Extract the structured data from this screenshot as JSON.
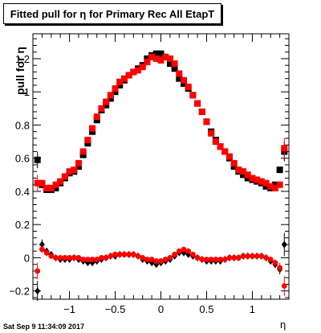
{
  "window": {
    "title": "Fitted pull for η for Primary Rec All EtapT",
    "timestamp": "Sat Sep  9 11:34:09 2017"
  },
  "chart_data": {
    "type": "scatter",
    "title": "Fitted pull for η for Primary Rec All EtapT",
    "xlabel": "η",
    "ylabel": "pull for  η",
    "xlim": [
      -1.4,
      1.4
    ],
    "ylim": [
      -0.25,
      1.35
    ],
    "x_ticks": [
      -1,
      -0.5,
      0,
      0.5,
      1
    ],
    "y_ticks": [
      -0.2,
      0,
      0.2,
      0.4,
      0.6,
      0.8,
      1,
      1.2
    ],
    "x_tick_labels": [
      "−1",
      "−0.5",
      "0",
      "0.5",
      "1"
    ],
    "y_tick_labels": [
      "−0.2",
      "0",
      "0.2",
      "0.4",
      "0.6",
      "0.8",
      "1",
      "1.2"
    ],
    "grid": false,
    "legend": "none",
    "colors": {
      "black": "#000000",
      "red": "#ff0000"
    },
    "series": [
      {
        "marker": "square",
        "color": "#000000",
        "x": [
          -1.35,
          -1.3,
          -1.25,
          -1.2,
          -1.15,
          -1.1,
          -1.05,
          -1.0,
          -0.95,
          -0.9,
          -0.85,
          -0.8,
          -0.75,
          -0.7,
          -0.65,
          -0.6,
          -0.55,
          -0.5,
          -0.45,
          -0.4,
          -0.35,
          -0.3,
          -0.25,
          -0.2,
          -0.15,
          -0.1,
          -0.05,
          0.0,
          0.05,
          0.1,
          0.15,
          0.2,
          0.25,
          0.3,
          0.35,
          0.4,
          0.45,
          0.5,
          0.55,
          0.6,
          0.65,
          0.7,
          0.75,
          0.8,
          0.85,
          0.9,
          0.95,
          1.0,
          1.05,
          1.1,
          1.15,
          1.2,
          1.25,
          1.3,
          1.35
        ],
        "y": [
          0.59,
          0.44,
          0.41,
          0.41,
          0.42,
          0.45,
          0.48,
          0.51,
          0.52,
          0.55,
          0.62,
          0.69,
          0.76,
          0.83,
          0.89,
          0.92,
          0.96,
          1.0,
          1.04,
          1.07,
          1.1,
          1.12,
          1.14,
          1.16,
          1.2,
          1.22,
          1.23,
          1.23,
          1.21,
          1.17,
          1.14,
          1.08,
          1.05,
          1.02,
          0.98,
          0.93,
          0.88,
          0.82,
          0.76,
          0.71,
          0.67,
          0.64,
          0.6,
          0.55,
          0.52,
          0.5,
          0.48,
          0.47,
          0.46,
          0.45,
          0.43,
          0.42,
          0.44,
          0.53,
          0.64
        ],
        "yerr": [
          0.05,
          0.02,
          0.02,
          0.01,
          0.01,
          0.01,
          0.01,
          0.01,
          0.01,
          0.01,
          0.01,
          0.01,
          0.01,
          0.01,
          0.01,
          0.01,
          0.01,
          0.01,
          0.01,
          0.01,
          0.01,
          0.01,
          0.01,
          0.01,
          0.01,
          0.01,
          0.01,
          0.01,
          0.01,
          0.01,
          0.01,
          0.01,
          0.01,
          0.01,
          0.01,
          0.01,
          0.01,
          0.01,
          0.01,
          0.01,
          0.01,
          0.01,
          0.01,
          0.01,
          0.01,
          0.01,
          0.01,
          0.01,
          0.01,
          0.01,
          0.01,
          0.01,
          0.01,
          0.02,
          0.06
        ]
      },
      {
        "marker": "square",
        "color": "#ff0000",
        "x": [
          -1.35,
          -1.3,
          -1.25,
          -1.2,
          -1.15,
          -1.1,
          -1.05,
          -1.0,
          -0.95,
          -0.9,
          -0.85,
          -0.8,
          -0.75,
          -0.7,
          -0.65,
          -0.6,
          -0.55,
          -0.5,
          -0.45,
          -0.4,
          -0.35,
          -0.3,
          -0.25,
          -0.2,
          -0.15,
          -0.1,
          -0.05,
          0.0,
          0.05,
          0.1,
          0.15,
          0.2,
          0.25,
          0.3,
          0.35,
          0.4,
          0.45,
          0.5,
          0.55,
          0.6,
          0.65,
          0.7,
          0.75,
          0.8,
          0.85,
          0.9,
          0.95,
          1.0,
          1.05,
          1.1,
          1.15,
          1.2,
          1.25,
          1.3,
          1.35
        ],
        "y": [
          0.45,
          0.45,
          0.42,
          0.42,
          0.44,
          0.46,
          0.49,
          0.52,
          0.53,
          0.57,
          0.64,
          0.71,
          0.78,
          0.85,
          0.9,
          0.94,
          0.98,
          1.02,
          1.06,
          1.08,
          1.1,
          1.12,
          1.13,
          1.15,
          1.18,
          1.21,
          1.2,
          1.19,
          1.21,
          1.2,
          1.17,
          1.11,
          1.07,
          1.03,
          0.98,
          0.93,
          0.88,
          0.82,
          0.75,
          0.7,
          0.67,
          0.64,
          0.61,
          0.57,
          0.53,
          0.52,
          0.5,
          0.48,
          0.47,
          0.46,
          0.45,
          0.43,
          0.42,
          0.44,
          0.66
        ],
        "yerr": [
          0.05,
          0.02,
          0.02,
          0.01,
          0.01,
          0.01,
          0.01,
          0.01,
          0.01,
          0.01,
          0.01,
          0.01,
          0.01,
          0.01,
          0.01,
          0.01,
          0.01,
          0.01,
          0.01,
          0.01,
          0.01,
          0.01,
          0.01,
          0.01,
          0.01,
          0.01,
          0.01,
          0.01,
          0.01,
          0.01,
          0.01,
          0.01,
          0.01,
          0.01,
          0.01,
          0.01,
          0.01,
          0.01,
          0.01,
          0.01,
          0.01,
          0.01,
          0.01,
          0.01,
          0.01,
          0.01,
          0.01,
          0.01,
          0.01,
          0.01,
          0.01,
          0.01,
          0.01,
          0.02,
          0.06
        ]
      },
      {
        "marker": "diamond",
        "color": "#000000",
        "x": [
          -1.35,
          -1.3,
          -1.25,
          -1.2,
          -1.15,
          -1.1,
          -1.05,
          -1.0,
          -0.95,
          -0.9,
          -0.85,
          -0.8,
          -0.75,
          -0.7,
          -0.65,
          -0.6,
          -0.55,
          -0.5,
          -0.45,
          -0.4,
          -0.35,
          -0.3,
          -0.25,
          -0.2,
          -0.15,
          -0.1,
          -0.05,
          0.0,
          0.05,
          0.1,
          0.15,
          0.2,
          0.25,
          0.3,
          0.35,
          0.4,
          0.45,
          0.5,
          0.55,
          0.6,
          0.65,
          0.7,
          0.75,
          0.8,
          0.85,
          0.9,
          0.95,
          1.0,
          1.05,
          1.1,
          1.15,
          1.2,
          1.25,
          1.3,
          1.35
        ],
        "y": [
          -0.2,
          0.08,
          0.04,
          0.02,
          0.0,
          -0.01,
          -0.01,
          -0.01,
          0.0,
          -0.01,
          -0.02,
          -0.03,
          -0.03,
          -0.02,
          -0.01,
          0.0,
          0.01,
          0.01,
          0.02,
          0.02,
          0.02,
          0.02,
          0.01,
          -0.01,
          -0.02,
          -0.03,
          -0.04,
          -0.03,
          -0.02,
          -0.01,
          0.01,
          0.03,
          0.03,
          0.02,
          0.01,
          0.0,
          -0.01,
          -0.02,
          -0.02,
          -0.02,
          -0.02,
          -0.01,
          0.0,
          0.0,
          0.0,
          0.01,
          0.01,
          0.01,
          0.01,
          0.01,
          0.0,
          -0.02,
          -0.04,
          -0.07,
          0.08
        ],
        "yerr": [
          0.06,
          0.03,
          0.02,
          0.01,
          0.01,
          0.01,
          0.01,
          0.01,
          0.01,
          0.01,
          0.01,
          0.01,
          0.01,
          0.01,
          0.01,
          0.01,
          0.01,
          0.01,
          0.01,
          0.01,
          0.01,
          0.01,
          0.01,
          0.01,
          0.01,
          0.01,
          0.01,
          0.01,
          0.01,
          0.01,
          0.01,
          0.01,
          0.01,
          0.01,
          0.01,
          0.01,
          0.01,
          0.01,
          0.01,
          0.01,
          0.01,
          0.01,
          0.01,
          0.01,
          0.01,
          0.01,
          0.01,
          0.01,
          0.01,
          0.01,
          0.01,
          0.01,
          0.02,
          0.03,
          0.07
        ]
      },
      {
        "marker": "circle",
        "color": "#ff0000",
        "x": [
          -1.35,
          -1.3,
          -1.25,
          -1.2,
          -1.15,
          -1.1,
          -1.05,
          -1.0,
          -0.95,
          -0.9,
          -0.85,
          -0.8,
          -0.75,
          -0.7,
          -0.65,
          -0.6,
          -0.55,
          -0.5,
          -0.45,
          -0.4,
          -0.35,
          -0.3,
          -0.25,
          -0.2,
          -0.15,
          -0.1,
          -0.05,
          0.0,
          0.05,
          0.1,
          0.15,
          0.2,
          0.25,
          0.3,
          0.35,
          0.4,
          0.45,
          0.5,
          0.55,
          0.6,
          0.65,
          0.7,
          0.75,
          0.8,
          0.85,
          0.9,
          0.95,
          1.0,
          1.05,
          1.1,
          1.15,
          1.2,
          1.25,
          1.3,
          1.35
        ],
        "y": [
          -0.08,
          0.05,
          0.03,
          0.01,
          0.0,
          0.0,
          0.0,
          0.0,
          0.0,
          0.0,
          -0.01,
          -0.01,
          -0.01,
          -0.01,
          0.0,
          0.0,
          0.01,
          0.02,
          0.02,
          0.02,
          0.02,
          0.02,
          0.01,
          0.0,
          -0.01,
          -0.01,
          -0.02,
          -0.02,
          -0.01,
          0.0,
          0.02,
          0.04,
          0.05,
          0.04,
          0.02,
          0.0,
          -0.01,
          -0.01,
          -0.01,
          -0.01,
          -0.01,
          -0.01,
          0.0,
          0.0,
          0.0,
          0.01,
          0.01,
          0.01,
          0.01,
          0.01,
          0.0,
          -0.01,
          -0.03,
          -0.06,
          -0.17
        ],
        "yerr": [
          0.05,
          0.02,
          0.02,
          0.01,
          0.01,
          0.01,
          0.01,
          0.01,
          0.01,
          0.01,
          0.01,
          0.01,
          0.01,
          0.01,
          0.01,
          0.01,
          0.01,
          0.01,
          0.01,
          0.01,
          0.01,
          0.01,
          0.01,
          0.01,
          0.01,
          0.01,
          0.01,
          0.01,
          0.01,
          0.01,
          0.01,
          0.01,
          0.01,
          0.01,
          0.01,
          0.01,
          0.01,
          0.01,
          0.01,
          0.01,
          0.01,
          0.01,
          0.01,
          0.01,
          0.01,
          0.01,
          0.01,
          0.01,
          0.01,
          0.01,
          0.01,
          0.01,
          0.02,
          0.03,
          0.06
        ]
      }
    ]
  }
}
